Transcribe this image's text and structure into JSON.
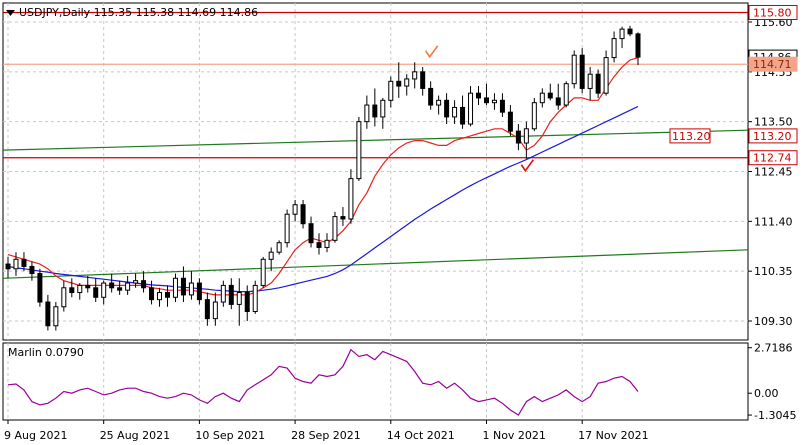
{
  "header": {
    "symbol_line": "USDJPY,Daily  115.35 115.38 114.69 114.86"
  },
  "chart_data": [
    {
      "type": "candlestick",
      "title": "USDJPY,Daily  115.35 115.38 114.69 114.86",
      "ylim": [
        108.9,
        116.0
      ],
      "y_ticks": [
        "115.60",
        "114.55",
        "113.50",
        "112.45",
        "111.40",
        "110.35",
        "109.30"
      ],
      "x_ticks": [
        "9 Aug 2021",
        "25 Aug 2021",
        "10 Sep 2021",
        "28 Sep 2021",
        "14 Oct 2021",
        "1 Nov 2021",
        "17 Nov 2021"
      ],
      "x_tick_index": [
        0,
        12,
        24,
        36,
        48,
        60,
        72
      ],
      "grid": true,
      "colors": {
        "candle": "#000000",
        "bull_fill": "#ffffff",
        "bear_fill": "#000000",
        "ma_fast": "#e8221e",
        "ma_slow": "#1a1ad6",
        "channel": "#1e7a1e",
        "level": "#cc0000",
        "level_light": "#f4a48a"
      },
      "candles": [
        [
          110.5,
          110.65,
          110.2,
          110.4
        ],
        [
          110.4,
          110.75,
          110.25,
          110.6
        ],
        [
          110.6,
          110.75,
          110.35,
          110.45
        ],
        [
          110.45,
          110.55,
          110.15,
          110.3
        ],
        [
          110.3,
          110.4,
          109.6,
          109.7
        ],
        [
          109.7,
          109.85,
          109.1,
          109.2
        ],
        [
          109.2,
          109.7,
          109.1,
          109.6
        ],
        [
          109.6,
          110.15,
          109.5,
          110.0
        ],
        [
          110.0,
          110.2,
          109.8,
          109.9
        ],
        [
          109.9,
          110.1,
          109.75,
          110.05
        ],
        [
          110.05,
          110.25,
          109.9,
          110.0
        ],
        [
          110.0,
          110.2,
          109.7,
          109.8
        ],
        [
          109.8,
          110.15,
          109.65,
          110.1
        ],
        [
          110.1,
          110.3,
          109.9,
          110.0
        ],
        [
          110.0,
          110.15,
          109.85,
          109.95
        ],
        [
          109.95,
          110.25,
          109.85,
          110.1
        ],
        [
          110.1,
          110.3,
          110.0,
          110.15
        ],
        [
          110.15,
          110.35,
          109.9,
          110.0
        ],
        [
          110.0,
          110.15,
          109.65,
          109.75
        ],
        [
          109.75,
          110.0,
          109.6,
          109.9
        ],
        [
          109.9,
          110.05,
          109.6,
          109.8
        ],
        [
          109.8,
          110.3,
          109.7,
          110.2
        ],
        [
          110.2,
          110.45,
          109.7,
          109.85
        ],
        [
          109.85,
          110.35,
          109.75,
          110.1
        ],
        [
          110.1,
          110.2,
          109.65,
          109.75
        ],
        [
          109.75,
          109.9,
          109.2,
          109.35
        ],
        [
          109.35,
          109.9,
          109.2,
          109.7
        ],
        [
          109.7,
          110.15,
          109.6,
          110.05
        ],
        [
          110.05,
          110.2,
          109.55,
          109.65
        ],
        [
          109.65,
          110.2,
          109.2,
          109.9
        ],
        [
          109.9,
          110.05,
          109.3,
          109.5
        ],
        [
          109.5,
          110.15,
          109.45,
          110.05
        ],
        [
          110.05,
          110.65,
          110.0,
          110.6
        ],
        [
          110.6,
          110.85,
          110.35,
          110.75
        ],
        [
          110.75,
          111.0,
          110.7,
          110.95
        ],
        [
          110.95,
          111.65,
          110.85,
          111.55
        ],
        [
          111.55,
          111.85,
          111.4,
          111.75
        ],
        [
          111.75,
          111.85,
          111.25,
          111.35
        ],
        [
          111.35,
          111.5,
          110.85,
          110.95
        ],
        [
          110.95,
          111.15,
          110.7,
          110.85
        ],
        [
          110.85,
          111.15,
          110.75,
          111.0
        ],
        [
          111.0,
          111.6,
          110.95,
          111.5
        ],
        [
          111.5,
          111.7,
          111.3,
          111.45
        ],
        [
          111.45,
          112.5,
          111.35,
          112.3
        ],
        [
          112.3,
          113.6,
          112.25,
          113.5
        ],
        [
          113.5,
          114.05,
          113.35,
          113.85
        ],
        [
          113.85,
          114.2,
          113.4,
          113.6
        ],
        [
          113.6,
          114.0,
          113.35,
          113.95
        ],
        [
          113.95,
          114.45,
          113.8,
          114.35
        ],
        [
          114.35,
          114.75,
          114.0,
          114.25
        ],
        [
          114.25,
          114.5,
          114.05,
          114.4
        ],
        [
          114.4,
          114.75,
          114.2,
          114.55
        ],
        [
          114.55,
          114.65,
          114.05,
          114.2
        ],
        [
          114.2,
          114.35,
          113.75,
          113.85
        ],
        [
          113.85,
          114.05,
          113.65,
          113.95
        ],
        [
          113.95,
          114.1,
          113.45,
          113.6
        ],
        [
          113.6,
          113.95,
          113.45,
          113.8
        ],
        [
          113.8,
          114.05,
          113.35,
          113.45
        ],
        [
          113.45,
          114.25,
          113.4,
          114.1
        ],
        [
          114.1,
          114.25,
          113.85,
          114.0
        ],
        [
          114.0,
          114.3,
          113.85,
          113.9
        ],
        [
          113.9,
          114.1,
          113.75,
          113.95
        ],
        [
          113.95,
          114.1,
          113.6,
          113.7
        ],
        [
          113.7,
          113.85,
          113.2,
          113.3
        ],
        [
          113.3,
          113.45,
          112.9,
          113.05
        ],
        [
          113.05,
          113.5,
          112.72,
          113.35
        ],
        [
          113.35,
          114.0,
          113.3,
          113.9
        ],
        [
          113.9,
          114.2,
          113.8,
          114.1
        ],
        [
          114.1,
          114.3,
          113.95,
          114.0
        ],
        [
          114.0,
          114.3,
          113.75,
          113.85
        ],
        [
          113.85,
          114.35,
          113.8,
          114.3
        ],
        [
          114.3,
          115.0,
          114.2,
          114.9
        ],
        [
          114.9,
          115.05,
          114.1,
          114.2
        ],
        [
          114.2,
          114.65,
          113.95,
          114.5
        ],
        [
          114.5,
          114.6,
          114.0,
          114.1
        ],
        [
          114.1,
          115.0,
          114.05,
          114.85
        ],
        [
          114.85,
          115.4,
          114.75,
          115.25
        ],
        [
          115.25,
          115.5,
          115.05,
          115.45
        ],
        [
          115.45,
          115.52,
          115.3,
          115.35
        ],
        [
          115.35,
          115.38,
          114.69,
          114.86
        ]
      ],
      "ma_fast": [
        110.7,
        110.65,
        110.6,
        110.55,
        110.5,
        110.4,
        110.25,
        110.15,
        110.1,
        110.05,
        110.05,
        110.05,
        110.05,
        110.05,
        110.05,
        110.05,
        110.05,
        110.05,
        110.0,
        109.98,
        109.95,
        109.95,
        109.95,
        109.95,
        109.92,
        109.88,
        109.85,
        109.85,
        109.85,
        109.85,
        109.85,
        109.9,
        110.0,
        110.1,
        110.3,
        110.55,
        110.8,
        110.95,
        111.05,
        111.0,
        110.95,
        111.05,
        111.2,
        111.4,
        111.75,
        112.0,
        112.35,
        112.6,
        112.8,
        112.95,
        113.05,
        113.1,
        113.1,
        113.05,
        113.0,
        113.0,
        113.1,
        113.15,
        113.2,
        113.25,
        113.3,
        113.35,
        113.35,
        113.25,
        113.15,
        112.9,
        113.0,
        113.2,
        113.5,
        113.7,
        113.85,
        114.0,
        114.0,
        113.95,
        113.95,
        114.2,
        114.45,
        114.65,
        114.8,
        114.85
      ],
      "ma_slow": [
        110.45,
        110.42,
        110.4,
        110.38,
        110.35,
        110.33,
        110.3,
        110.28,
        110.26,
        110.24,
        110.22,
        110.2,
        110.18,
        110.16,
        110.14,
        110.12,
        110.1,
        110.08,
        110.06,
        110.05,
        110.04,
        110.02,
        110.01,
        110.0,
        109.98,
        109.97,
        109.95,
        109.94,
        109.93,
        109.92,
        109.92,
        109.93,
        109.95,
        109.97,
        110.0,
        110.04,
        110.08,
        110.12,
        110.16,
        110.2,
        110.24,
        110.3,
        110.38,
        110.48,
        110.6,
        110.72,
        110.84,
        110.96,
        111.08,
        111.2,
        111.32,
        111.44,
        111.55,
        111.66,
        111.76,
        111.86,
        111.96,
        112.06,
        112.15,
        112.24,
        112.32,
        112.4,
        112.48,
        112.56,
        112.63,
        112.7,
        112.78,
        112.86,
        112.94,
        113.02,
        113.1,
        113.18,
        113.26,
        113.34,
        113.42,
        113.5,
        113.58,
        113.66,
        113.74,
        113.82
      ],
      "price_tags": [
        {
          "label": "115.80",
          "value": 115.8,
          "style": "red-box"
        },
        {
          "label": "114.86",
          "value": 114.86,
          "style": "dark-box"
        },
        {
          "label": "114.71",
          "value": 114.71,
          "style": "orange-box"
        },
        {
          "label": "113.20",
          "value": 113.2,
          "style": "red-box"
        },
        {
          "label": "112.74",
          "value": 112.74,
          "style": "red-box"
        }
      ],
      "lines": [
        {
          "from": [
            0,
            115.8
          ],
          "to": [
            79,
            115.8
          ],
          "style": "level"
        },
        {
          "from": [
            0,
            114.71
          ],
          "to": [
            79,
            114.71
          ],
          "style": "level_light"
        },
        {
          "from": [
            0,
            112.74
          ],
          "to": [
            79,
            112.74
          ],
          "style": "level"
        },
        {
          "from": [
            0,
            112.9
          ],
          "to": [
            79,
            113.32
          ],
          "style": "channel"
        },
        {
          "from": [
            0,
            110.2
          ],
          "to": [
            79,
            110.8
          ],
          "style": "channel"
        }
      ],
      "checkmarks": [
        {
          "index": 53,
          "value": 114.95,
          "color": "#f07a3a"
        },
        {
          "index": 65,
          "value": 112.55,
          "color": "#dd1111"
        }
      ]
    },
    {
      "type": "line",
      "title": "Marlin 0.0790",
      "ylim": [
        -1.6,
        3.0
      ],
      "y_ticks": [
        "2.7186",
        "0.00",
        "-1.3045"
      ],
      "series": [
        {
          "name": "Marlin 0.0790",
          "color": "#9b009b",
          "values": [
            0.5,
            0.55,
            0.2,
            -0.5,
            -0.7,
            -0.6,
            -0.3,
            0.1,
            0.0,
            0.2,
            0.3,
            0.1,
            -0.1,
            0.0,
            0.2,
            0.3,
            0.3,
            0.1,
            0.0,
            -0.2,
            -0.3,
            -0.2,
            0.0,
            -0.1,
            -0.4,
            -0.6,
            -0.2,
            0.0,
            -0.3,
            -0.5,
            0.2,
            0.5,
            0.8,
            1.1,
            1.6,
            1.5,
            0.9,
            0.7,
            0.6,
            1.1,
            1.0,
            1.1,
            1.6,
            2.6,
            2.2,
            2.3,
            2.0,
            2.5,
            2.3,
            2.1,
            1.9,
            1.3,
            0.6,
            0.5,
            0.7,
            0.3,
            0.6,
            0.2,
            -0.3,
            -0.5,
            -0.4,
            -0.3,
            -0.6,
            -1.0,
            -1.3,
            -0.5,
            -0.2,
            -0.5,
            -0.3,
            -0.1,
            0.2,
            -0.2,
            -0.5,
            -0.2,
            0.6,
            0.7,
            0.9,
            1.0,
            0.7,
            0.1
          ]
        }
      ]
    }
  ]
}
